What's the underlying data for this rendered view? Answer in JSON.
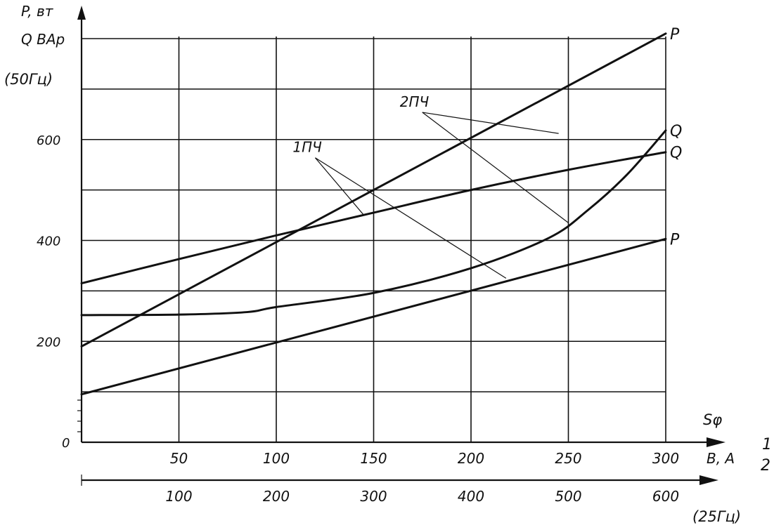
{
  "chart_data": {
    "type": "line",
    "y_axis_label_line1": "P, вт",
    "y_axis_label_line2": "Q  ВАр",
    "y_axis_freq_label": "(50Гц)",
    "y_ticks": [
      0,
      200,
      400,
      600
    ],
    "ylim": [
      0,
      800
    ],
    "x_axis_symbol": "Sφ",
    "x_axis_unit": "В, А",
    "x_axis_top": {
      "ticks": [
        50,
        100,
        150,
        200,
        250,
        300
      ],
      "xlim": [
        0,
        300
      ]
    },
    "x_axis_bottom": {
      "ticks": [
        100,
        200,
        300,
        400,
        500,
        600
      ],
      "xlim": [
        0,
        600
      ],
      "freq_label": "(25Гц)"
    },
    "row_marker_1": "1",
    "row_marker_2": "2",
    "series": [
      {
        "name": "P",
        "axis": "top",
        "x": [
          0,
          300
        ],
        "y": [
          190,
          810
        ]
      },
      {
        "name": "Q",
        "axis": "top",
        "x": [
          0,
          50,
          100,
          150,
          200,
          250,
          300
        ],
        "y": [
          315,
          363,
          410,
          455,
          500,
          540,
          575
        ]
      },
      {
        "name": "Q",
        "axis": "top",
        "x": [
          0,
          50,
          85,
          100,
          150,
          200,
          240,
          260,
          280,
          300
        ],
        "y": [
          252,
          253,
          258,
          268,
          296,
          345,
          405,
          460,
          530,
          618
        ]
      },
      {
        "name": "P",
        "axis": "top",
        "x": [
          0,
          300
        ],
        "y": [
          95,
          403
        ]
      }
    ],
    "annotations": [
      {
        "text": "2ПЧ",
        "x": 175,
        "y": 665,
        "targets": [
          [
            245,
            612
          ],
          [
            250,
            435
          ]
        ]
      },
      {
        "text": "1ПЧ",
        "x": 120,
        "y": 575,
        "targets": [
          [
            145,
            450
          ],
          [
            218,
            325
          ]
        ]
      }
    ]
  }
}
